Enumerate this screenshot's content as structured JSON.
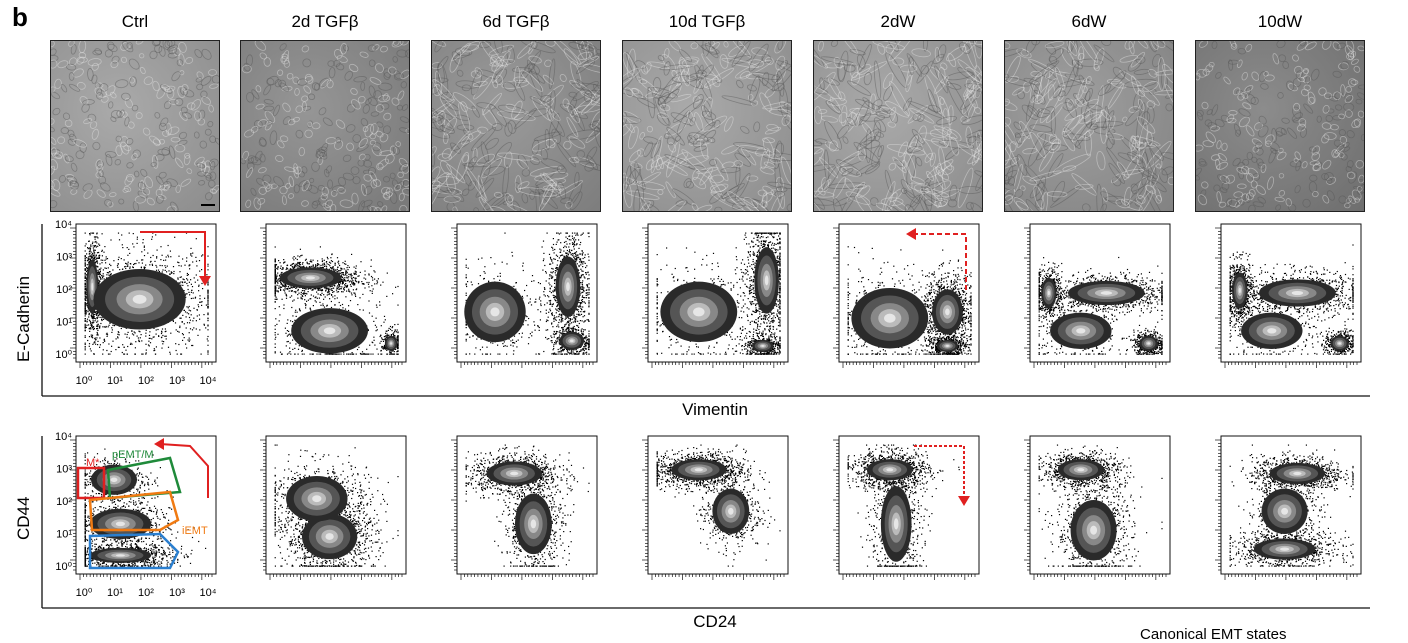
{
  "panel": {
    "letter": "b"
  },
  "columns": [
    {
      "label": "Ctrl"
    },
    {
      "label": "2d TGFβ"
    },
    {
      "label": "6d TGFβ"
    },
    {
      "label": "10d TGFβ"
    },
    {
      "label": "2dW"
    },
    {
      "label": "6dW"
    },
    {
      "label": "10dW"
    }
  ],
  "row_ecad": {
    "ylabel": "E-Cadherin",
    "xlabel": "Vimentin",
    "ticks": [
      "10⁰",
      "10¹",
      "10²",
      "10³",
      "10⁴"
    ]
  },
  "row_cd44": {
    "ylabel": "CD44",
    "xlabel": "CD24",
    "ticks": [
      "10⁰",
      "10¹",
      "10²",
      "10³",
      "10⁴"
    ],
    "gates": [
      {
        "label": "M*",
        "color": "#e02020"
      },
      {
        "label": "pEMT/M",
        "color": "#1f8a3a"
      },
      {
        "label": "iEMT",
        "color": "#f07a12"
      },
      {
        "label": "E",
        "color": "#2a7fd0"
      }
    ]
  },
  "footer": {
    "text": "Canonical EMT states"
  },
  "colors": {
    "arrow": "#e02020",
    "photo": "#9c9c9c"
  }
}
